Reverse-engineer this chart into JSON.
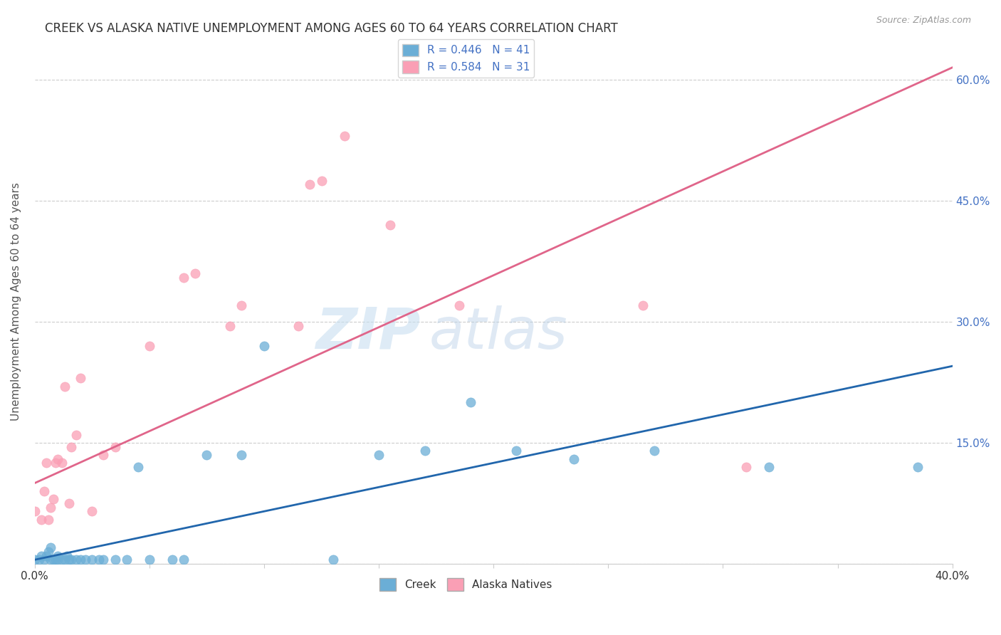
{
  "title": "CREEK VS ALASKA NATIVE UNEMPLOYMENT AMONG AGES 60 TO 64 YEARS CORRELATION CHART",
  "source": "Source: ZipAtlas.com",
  "ylabel": "Unemployment Among Ages 60 to 64 years",
  "creek_R": 0.446,
  "creek_N": 41,
  "alaska_R": 0.584,
  "alaska_N": 31,
  "xlim": [
    0.0,
    0.4
  ],
  "ylim": [
    0.0,
    0.65
  ],
  "xticks": [
    0.0,
    0.05,
    0.1,
    0.15,
    0.2,
    0.25,
    0.3,
    0.35,
    0.4
  ],
  "yticks": [
    0.0,
    0.15,
    0.3,
    0.45,
    0.6
  ],
  "creek_color": "#6baed6",
  "alaska_color": "#fa9fb5",
  "creek_line_color": "#2166ac",
  "alaska_line_color": "#e0658a",
  "watermark_zip": "ZIP",
  "watermark_atlas": "atlas",
  "creek_x": [
    0.0,
    0.002,
    0.003,
    0.004,
    0.005,
    0.006,
    0.007,
    0.007,
    0.008,
    0.009,
    0.01,
    0.01,
    0.012,
    0.013,
    0.014,
    0.015,
    0.016,
    0.018,
    0.02,
    0.022,
    0.025,
    0.028,
    0.03,
    0.035,
    0.04,
    0.045,
    0.05,
    0.06,
    0.065,
    0.075,
    0.09,
    0.1,
    0.13,
    0.15,
    0.17,
    0.19,
    0.21,
    0.235,
    0.27,
    0.32,
    0.385
  ],
  "creek_y": [
    0.005,
    0.005,
    0.01,
    0.005,
    0.01,
    0.015,
    0.005,
    0.02,
    0.005,
    0.005,
    0.005,
    0.01,
    0.005,
    0.005,
    0.01,
    0.005,
    0.005,
    0.005,
    0.005,
    0.005,
    0.005,
    0.005,
    0.005,
    0.005,
    0.005,
    0.12,
    0.005,
    0.005,
    0.005,
    0.135,
    0.135,
    0.27,
    0.005,
    0.135,
    0.14,
    0.2,
    0.14,
    0.13,
    0.14,
    0.12,
    0.12
  ],
  "alaska_x": [
    0.0,
    0.003,
    0.004,
    0.005,
    0.006,
    0.007,
    0.008,
    0.009,
    0.01,
    0.012,
    0.013,
    0.015,
    0.016,
    0.018,
    0.02,
    0.025,
    0.03,
    0.035,
    0.05,
    0.065,
    0.07,
    0.085,
    0.09,
    0.115,
    0.12,
    0.125,
    0.135,
    0.155,
    0.185,
    0.265,
    0.31
  ],
  "alaska_y": [
    0.065,
    0.055,
    0.09,
    0.125,
    0.055,
    0.07,
    0.08,
    0.125,
    0.13,
    0.125,
    0.22,
    0.075,
    0.145,
    0.16,
    0.23,
    0.065,
    0.135,
    0.145,
    0.27,
    0.355,
    0.36,
    0.295,
    0.32,
    0.295,
    0.47,
    0.475,
    0.53,
    0.42,
    0.32,
    0.32,
    0.12
  ],
  "alaska_line_x0": 0.0,
  "alaska_line_y0": 0.1,
  "alaska_line_x1": 0.4,
  "alaska_line_y1": 0.615,
  "creek_line_x0": 0.0,
  "creek_line_y0": 0.005,
  "creek_line_x1": 0.4,
  "creek_line_y1": 0.245,
  "bg_color": "#ffffff",
  "grid_color": "#cccccc",
  "right_ytick_labels": [
    "15.0%",
    "30.0%",
    "45.0%",
    "60.0%"
  ],
  "right_yticks": [
    0.15,
    0.3,
    0.45,
    0.6
  ]
}
